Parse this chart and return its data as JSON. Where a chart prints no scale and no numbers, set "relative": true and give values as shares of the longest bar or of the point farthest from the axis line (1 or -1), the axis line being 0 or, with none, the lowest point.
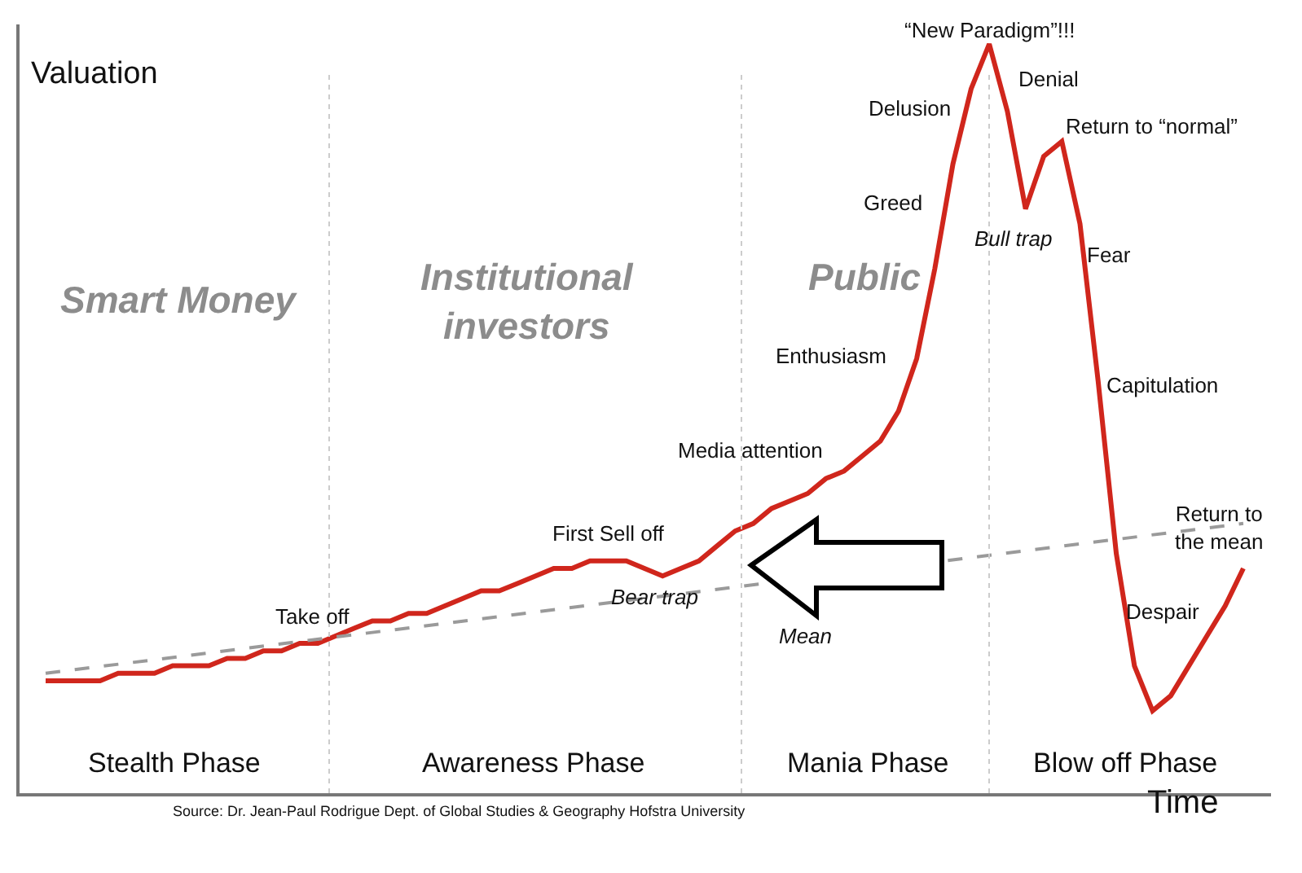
{
  "chart_data": {
    "type": "line",
    "relative": true,
    "ylabel": "Valuation",
    "xlabel": "Time",
    "grid": false,
    "marker": "none",
    "categories": [
      null,
      null,
      null,
      null,
      null,
      null,
      null,
      null,
      null,
      null,
      null,
      null,
      null,
      null,
      null,
      null,
      null,
      null,
      null,
      null,
      null,
      null,
      null,
      null,
      null,
      null,
      null,
      null,
      null,
      null,
      null,
      null,
      null,
      null,
      null,
      null,
      null,
      null,
      null,
      null,
      null,
      null,
      null,
      null,
      null,
      null,
      null,
      null,
      null,
      null,
      null,
      null,
      null,
      null,
      null,
      null,
      null,
      null,
      null,
      null,
      null,
      null,
      null,
      null,
      null,
      null,
      null
    ],
    "series": [
      {
        "color": "#d0261c",
        "line_style": "solid",
        "values": [
          0.15,
          0.15,
          0.15,
          0.15,
          0.16,
          0.16,
          0.16,
          0.17,
          0.17,
          0.17,
          0.18,
          0.18,
          0.19,
          0.19,
          0.2,
          0.2,
          0.21,
          0.22,
          0.23,
          0.23,
          0.24,
          0.24,
          0.25,
          0.26,
          0.27,
          0.27,
          0.28,
          0.29,
          0.3,
          0.3,
          0.31,
          0.31,
          0.31,
          0.3,
          0.29,
          0.3,
          0.31,
          0.33,
          0.35,
          0.36,
          0.38,
          0.39,
          0.4,
          0.42,
          0.43,
          0.45,
          0.47,
          0.51,
          0.58,
          0.7,
          0.84,
          0.94,
          1,
          0.91,
          0.78,
          0.85,
          0.87,
          0.76,
          0.55,
          0.32,
          0.17,
          0.11,
          0.13,
          0.17,
          0.21,
          0.25,
          0.3
        ]
      },
      {
        "color": "#9a9a9a",
        "line_style": "dashed",
        "values": [
          0.16,
          null,
          null,
          null,
          null,
          null,
          null,
          null,
          null,
          null,
          null,
          null,
          null,
          null,
          null,
          null,
          null,
          null,
          null,
          null,
          null,
          null,
          null,
          null,
          null,
          null,
          null,
          null,
          null,
          null,
          null,
          null,
          null,
          null,
          null,
          null,
          null,
          null,
          null,
          null,
          null,
          null,
          null,
          null,
          null,
          null,
          null,
          null,
          null,
          null,
          null,
          null,
          null,
          null,
          null,
          null,
          null,
          null,
          null,
          null,
          null,
          null,
          null,
          null,
          null,
          null,
          0.36
        ]
      }
    ],
    "annotations": [
      "Smart Money",
      "Institutional\ninvestors",
      "Public",
      "Take off",
      "First Sell off",
      "Bear trap",
      "Mean",
      "Media attention",
      "Enthusiasm",
      "Greed",
      "Delusion",
      "“New Paradigm”!!!",
      "Denial",
      "Return to “normal”",
      "Bull trap",
      "Fear",
      "Capitulation",
      "Despair",
      "Return to\nthe mean",
      "Source: Dr. Jean-Paul Rodrigue Dept. of Global Studies & Geography Hofstra University",
      "Stealth Phase",
      "Awareness Phase",
      "Mania Phase",
      "Blow off Phase"
    ]
  }
}
